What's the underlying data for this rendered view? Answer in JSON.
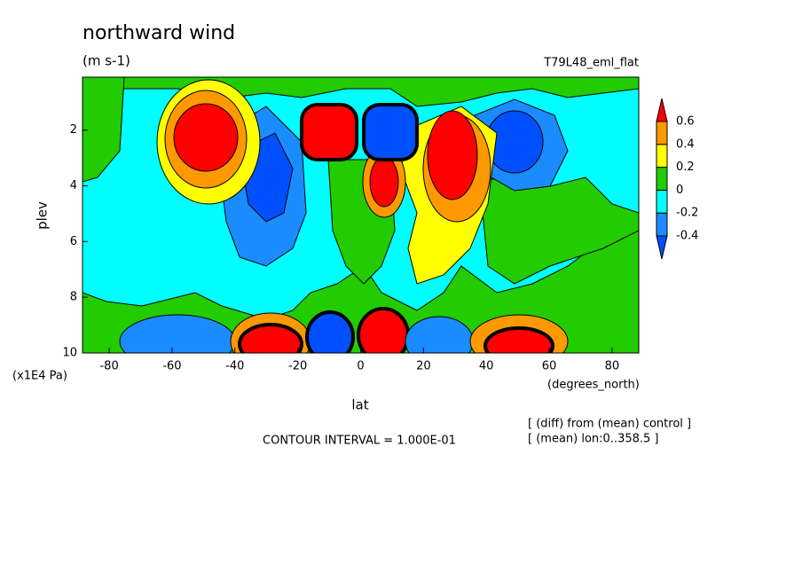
{
  "chart_data": {
    "type": "contour",
    "title": "northward wind",
    "subtitle": "(m s-1)",
    "dataset": "T79L48_eml_flat",
    "x_label": "lat",
    "x_units": "(degrees_north)",
    "y_label": "plev",
    "y_units": "(x1E4 Pa)",
    "xlim": [
      -88.5,
      88.5
    ],
    "xticks": [
      -80,
      -60,
      -40,
      -20,
      0,
      20,
      40,
      60,
      80
    ],
    "ylim": [
      0.1,
      10
    ],
    "yticks": [
      2,
      4,
      6,
      8,
      10
    ],
    "y_inverted": true,
    "levels": [
      -0.4,
      -0.2,
      0,
      0.2,
      0.4,
      0.6
    ],
    "colors": [
      "#0050ff",
      "#1a8cff",
      "#00ffff",
      "#22cc00",
      "#ffff00",
      "#ff9900",
      "#ff0000"
    ],
    "contour_interval": "CONTOUR INTERVAL = 1.000E-01",
    "notes": [
      "[ (diff) from (mean) control ]",
      "[ (mean) lon:0..358.5 ]"
    ]
  }
}
